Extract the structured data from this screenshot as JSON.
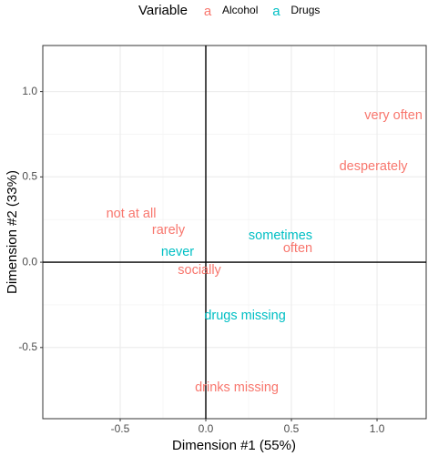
{
  "chart_data": {
    "type": "scatter",
    "x_label": "Dimension #1 (55%)",
    "y_label": "Dimension #2 (33%)",
    "legend_title": "Variable",
    "legend_key_glyph": "a",
    "legend_position": "top",
    "grid": true,
    "reference_lines": {
      "x": 0,
      "y": 0
    },
    "xlim": [
      -0.952,
      1.287
    ],
    "ylim": [
      -0.917,
      1.27
    ],
    "xticks": [
      {
        "value": -0.5,
        "label": "-0.5"
      },
      {
        "value": 0,
        "label": "0.0"
      },
      {
        "value": 0.5,
        "label": "0.5"
      },
      {
        "value": 1,
        "label": "1.0"
      }
    ],
    "yticks": [
      -0.5,
      {
        "value": 0,
        "label": "0.0"
      },
      0.5,
      {
        "value": 1,
        "label": "1.0"
      }
    ],
    "series": [
      {
        "name": "Alcohol",
        "color": "#F8766D",
        "labels": [
          "very often",
          "desperately",
          "not at all",
          "rarely",
          "often",
          "socially",
          "drinks missing"
        ],
        "x": [
          1.096,
          0.979,
          -0.436,
          -0.218,
          0.537,
          -0.037,
          0.181
        ],
        "values": [
          0.859,
          0.56,
          0.283,
          0.187,
          0.08,
          -0.048,
          -0.736
        ]
      },
      {
        "name": "Drugs",
        "color": "#00BFC4",
        "labels": [
          "sometimes",
          "never",
          "drugs missing"
        ],
        "x": [
          0.436,
          -0.165,
          0.229
        ],
        "values": [
          0.155,
          0.059,
          -0.315
        ]
      }
    ]
  }
}
